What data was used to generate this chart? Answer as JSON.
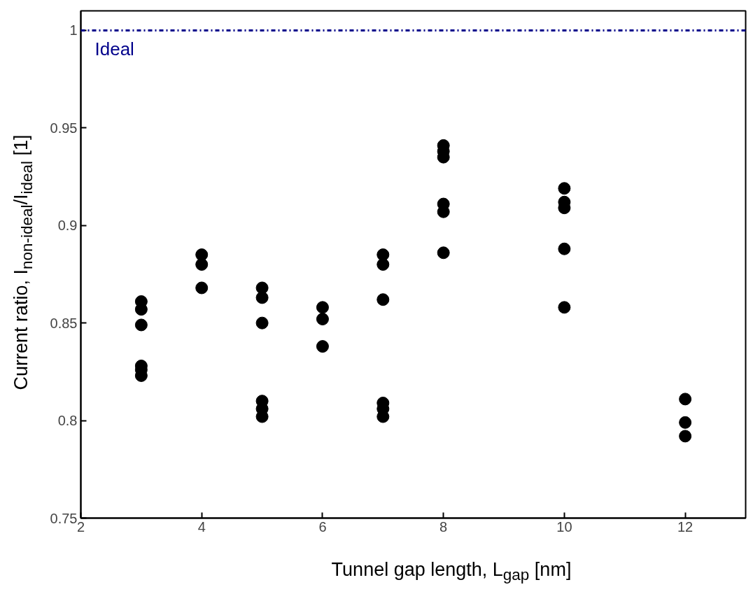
{
  "chart_data": {
    "type": "scatter",
    "xlabel": "Tunnel gap length, L$_{gap}$ [nm]",
    "ylabel": "Current ratio, I$_{non-ideal}$/I$_{ideal}$ [1]",
    "xlim": [
      2,
      13
    ],
    "ylim": [
      0.75,
      1.01
    ],
    "xticks": [
      2,
      4,
      6,
      8,
      10,
      12
    ],
    "yticks": [
      0.75,
      0.8,
      0.85,
      0.9,
      0.95,
      1
    ],
    "grid": false,
    "marker": "circle",
    "series": [
      {
        "color": "#000000",
        "x": [
          3,
          3,
          3,
          3,
          3,
          3,
          4,
          4,
          4,
          5,
          5,
          5,
          5,
          5,
          5,
          6,
          6,
          6,
          7,
          7,
          7,
          7,
          7,
          7,
          8,
          8,
          8,
          8,
          8,
          8,
          10,
          10,
          10,
          10,
          10,
          12,
          12,
          12
        ],
        "values": [
          0.861,
          0.857,
          0.849,
          0.828,
          0.826,
          0.823,
          0.885,
          0.88,
          0.868,
          0.868,
          0.863,
          0.85,
          0.81,
          0.806,
          0.802,
          0.858,
          0.852,
          0.838,
          0.885,
          0.88,
          0.862,
          0.809,
          0.806,
          0.802,
          0.941,
          0.938,
          0.935,
          0.911,
          0.907,
          0.886,
          0.919,
          0.912,
          0.909,
          0.888,
          0.858,
          0.811,
          0.799,
          0.792
        ]
      }
    ],
    "ref_lines": [
      {
        "axis": "y",
        "value": 1,
        "label": "Ideal",
        "color": "#00008b",
        "line_style": "dashdot"
      }
    ]
  }
}
